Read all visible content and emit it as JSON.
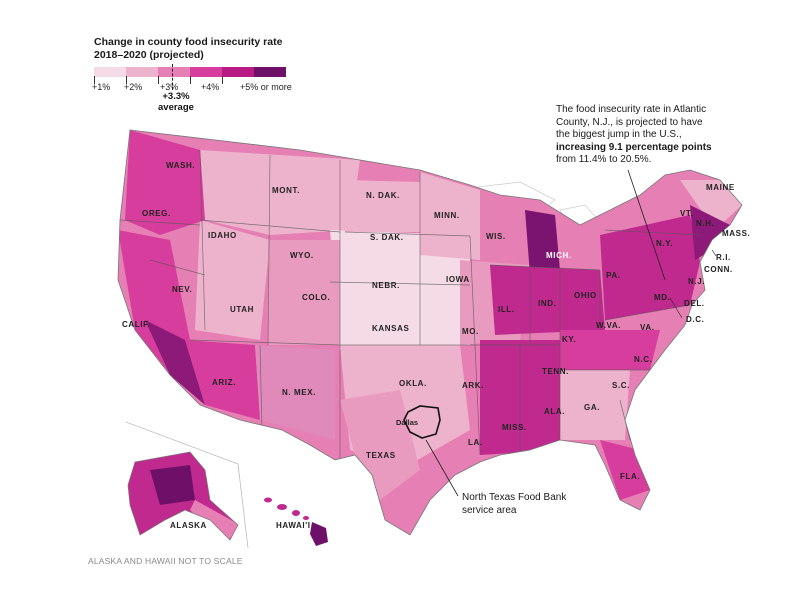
{
  "legend": {
    "title_line1": "Change in county food insecurity rate",
    "title_line2": "2018–2020 (projected)",
    "colors": [
      "#f4dbe6",
      "#eeb3cc",
      "#e57fb4",
      "#d63d9c",
      "#b81c84",
      "#6e1068"
    ],
    "ticks": [
      "+1%",
      "+2%",
      "+3%",
      "+4%",
      "+5% or more"
    ],
    "average_value": "+3.3%",
    "average_label": "average"
  },
  "annotation": {
    "line1": "The food insecurity rate in Atlantic County, N.J., is projected to have the biggest jump in the U.S., ",
    "bold1": "increasing 9.1 percentage points",
    "line2": " from 11.4% to 20.5%."
  },
  "north_texas": {
    "label_line1": "North Texas Food Bank",
    "label_line2": "service area",
    "city": "Dallas"
  },
  "footnote": "ALASKA AND HAWAII NOT TO SCALE",
  "states": {
    "wash": "WASH.",
    "oreg": "OREG.",
    "calif": "CALIF.",
    "idaho": "IDAHO",
    "nev": "NEV.",
    "utah": "UTAH",
    "ariz": "ARIZ.",
    "mont": "MONT.",
    "wyo": "WYO.",
    "colo": "COLO.",
    "nmex": "N. MEX.",
    "ndak": "N. DAK.",
    "sdak": "S. DAK.",
    "nebr": "NEBR.",
    "kansas": "KANSAS",
    "okla": "OKLA.",
    "texas": "TEXAS",
    "minn": "MINN.",
    "iowa": "IOWA",
    "mo": "MO.",
    "ark": "ARK.",
    "la": "LA.",
    "wis": "WIS.",
    "ill": "ILL.",
    "mich": "MICH.",
    "ind": "IND.",
    "ohio": "OHIO",
    "ky": "KY.",
    "tenn": "TENN.",
    "miss": "MISS.",
    "ala": "ALA.",
    "ga": "GA.",
    "fla": "FLA.",
    "sc": "S.C.",
    "nc": "N.C.",
    "va": "VA.",
    "wva": "W.VA.",
    "pa": "PA.",
    "ny": "N.Y.",
    "vt": "VT.",
    "nh": "N.H.",
    "maine": "MAINE",
    "mass": "MASS.",
    "ri": "R.I.",
    "conn": "CONN.",
    "nj": "N.J.",
    "del": "DEL.",
    "md": "MD.",
    "dc": "D.C.",
    "alaska": "ALASKA",
    "hawaii": "HAWAI'I"
  }
}
